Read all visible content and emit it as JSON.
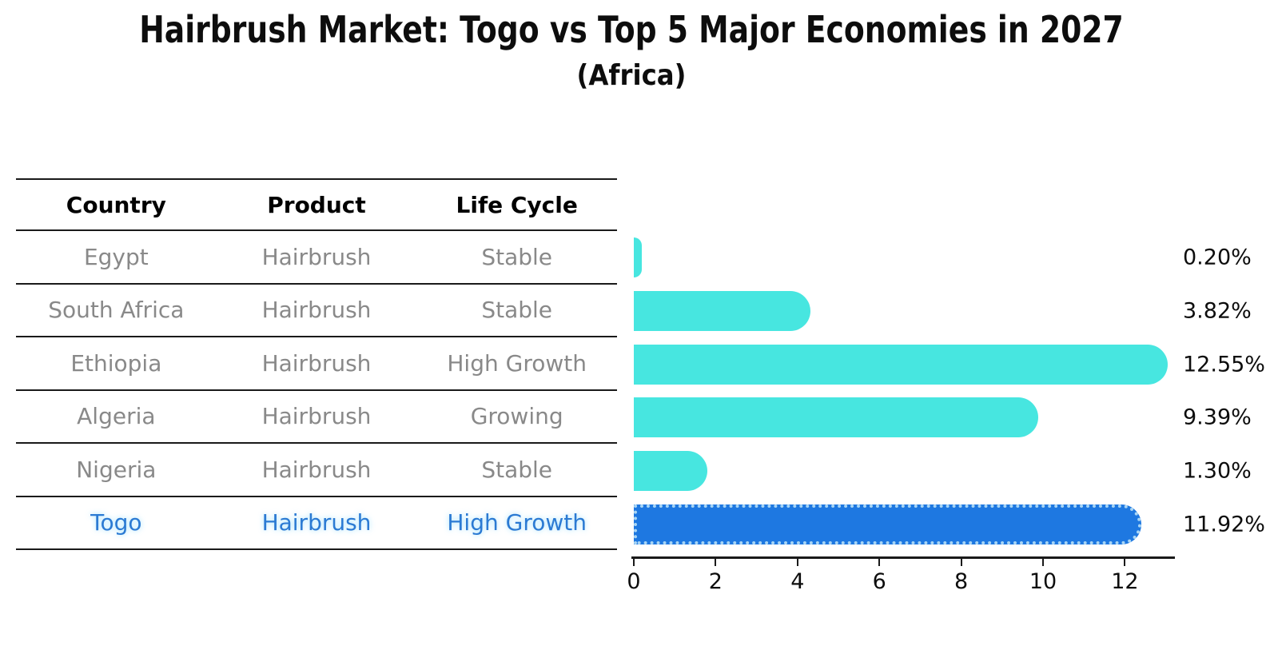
{
  "title": "Hairbrush Market: Togo vs Top 5 Major Economies in 2027",
  "subtitle": "(Africa)",
  "table": {
    "headers": [
      "Country",
      "Product",
      "Life Cycle"
    ],
    "rows": [
      {
        "country": "Egypt",
        "product": "Hairbrush",
        "life_cycle": "Stable",
        "highlight": false
      },
      {
        "country": "South Africa",
        "product": "Hairbrush",
        "life_cycle": "Stable",
        "highlight": false
      },
      {
        "country": "Ethiopia",
        "product": "Hairbrush",
        "life_cycle": "High Growth",
        "highlight": false
      },
      {
        "country": "Algeria",
        "product": "Hairbrush",
        "life_cycle": "Growing",
        "highlight": false
      },
      {
        "country": "Nigeria",
        "product": "Hairbrush",
        "life_cycle": "Stable",
        "highlight": false
      },
      {
        "country": "Togo",
        "product": "Hairbrush",
        "life_cycle": "High Growth",
        "highlight": true
      }
    ]
  },
  "chart_data": {
    "type": "bar",
    "orientation": "horizontal",
    "title": "Hairbrush Market: Togo vs Top 5 Major Economies in 2027",
    "subtitle": "(Africa)",
    "categories": [
      "Egypt",
      "South Africa",
      "Ethiopia",
      "Algeria",
      "Nigeria",
      "Togo"
    ],
    "values": [
      0.2,
      3.82,
      12.55,
      9.39,
      1.3,
      11.92
    ],
    "value_labels": [
      "0.20%",
      "3.82%",
      "12.55%",
      "9.39%",
      "1.30%",
      "11.92%"
    ],
    "highlight_category": "Togo",
    "xlabel": "",
    "ylabel": "",
    "xticks": [
      0,
      2,
      4,
      6,
      8,
      10,
      12
    ],
    "xlim": [
      0,
      13.2
    ],
    "grid": false,
    "legend": false,
    "colors": {
      "bar": "#47e6e0",
      "highlight_bar": "#1e78e1",
      "highlight_edge": "#a9d6f5",
      "table_text": "#898989",
      "highlight_text": "#2b7ad3",
      "axis": "#1a1a1a"
    }
  }
}
